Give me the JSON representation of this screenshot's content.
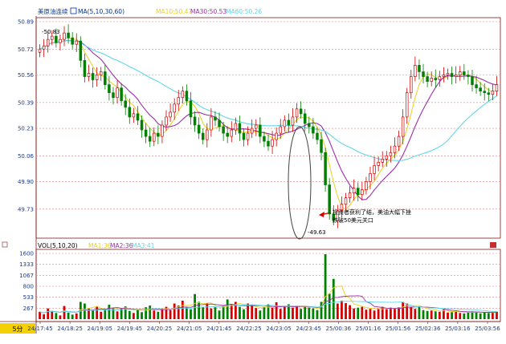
{
  "header": {
    "instrument": "美原油连续",
    "indicator": "MA(5,10,30,60)",
    "ma10_label": "MA10:50.47",
    "ma30_label": "MA30:50.53",
    "ma60_label": "MA60:50.26"
  },
  "volume_header": {
    "indicator": "VOL(5,10,20)",
    "ma1_label": "MA1:36",
    "ma2_label": "MA2:36",
    "ma3_label": "MA3:41"
  },
  "period_badge": "5分",
  "annotation": {
    "line1": "投资者获利了结，美油大幅下挫",
    "line2": "跌破50美元关口",
    "low_label": "-49.63",
    "high_label": "-50.83"
  },
  "colors": {
    "up": "#d40000",
    "down": "#008000",
    "ma5": "#e8d020",
    "ma10": "#9b2fa8",
    "ma30": "#60d8e8",
    "grid": "#e08080",
    "axis_text": "#1a3a8a"
  },
  "chart_data": [
    {
      "type": "candlestick",
      "title": "美原油连续",
      "yticks": [
        "50.89",
        "50.72",
        "50.56",
        "50.39",
        "50.23",
        "50.06",
        "49.90",
        "49.73"
      ],
      "ylim": [
        49.6,
        50.89
      ],
      "xticks": [
        "24/17:45",
        "24/18:25",
        "24/19:05",
        "24/19:45",
        "24/20:25",
        "24/21:05",
        "24/21:45",
        "24/22:25",
        "24/23:05",
        "24/23:45",
        "25/00:36",
        "25/01:16",
        "25/01:56",
        "25/02:36",
        "25/03:16",
        "25/03:56"
      ],
      "close": [
        50.72,
        50.74,
        50.78,
        50.8,
        50.76,
        50.78,
        50.82,
        50.79,
        50.75,
        50.77,
        50.65,
        50.55,
        50.57,
        50.53,
        50.56,
        50.58,
        50.5,
        50.45,
        50.42,
        50.48,
        50.4,
        50.36,
        50.3,
        50.32,
        50.28,
        50.22,
        50.18,
        50.15,
        50.2,
        50.18,
        50.25,
        50.3,
        50.33,
        50.38,
        50.42,
        50.46,
        50.4,
        50.3,
        50.25,
        50.2,
        50.16,
        50.22,
        50.3,
        50.28,
        50.24,
        50.2,
        50.18,
        50.22,
        50.26,
        50.2,
        50.16,
        50.2,
        50.23,
        50.25,
        50.18,
        50.15,
        50.12,
        50.16,
        50.2,
        50.24,
        50.28,
        50.25,
        50.3,
        50.35,
        50.32,
        50.26,
        50.24,
        50.2,
        50.16,
        50.08,
        49.88,
        49.7,
        49.66,
        49.72,
        49.76,
        49.8,
        49.83,
        49.86,
        49.82,
        49.85,
        49.9,
        49.95,
        50.0,
        50.02,
        50.04,
        50.06,
        50.08,
        50.12,
        50.18,
        50.3,
        50.45,
        50.55,
        50.62,
        50.58,
        50.55,
        50.52,
        50.54,
        50.53,
        50.55,
        50.56,
        50.57,
        50.55,
        50.56,
        50.58,
        50.56,
        50.55,
        50.5,
        50.48,
        50.46,
        50.45,
        50.44,
        50.46,
        50.5
      ]
    },
    {
      "type": "bar",
      "title": "VOL(5,10,20)",
      "yticks": [
        "1600",
        "1333",
        "1067",
        "800",
        "533",
        "267"
      ],
      "ylim": [
        0,
        1600
      ],
      "series": [
        {
          "name": "VOL",
          "values": [
            180,
            120,
            260,
            200,
            150,
            90,
            320,
            160,
            110,
            140,
            420,
            380,
            260,
            210,
            300,
            180,
            240,
            350,
            280,
            190,
            260,
            310,
            200,
            150,
            230,
            170,
            290,
            330,
            210,
            180,
            260,
            300,
            220,
            380,
            330,
            450,
            290,
            240,
            610,
            420,
            300,
            380,
            260,
            290,
            210,
            330,
            480,
            360,
            420,
            300,
            240,
            380,
            330,
            270,
            210,
            290,
            360,
            280,
            410,
            250,
            300,
            360,
            280,
            330,
            250,
            300,
            280,
            260,
            220,
            420,
            1580,
            620,
            980,
            380,
            450,
            390,
            340,
            260,
            280,
            300,
            230,
            250,
            210,
            260,
            300,
            240,
            280,
            250,
            290,
            420,
            380,
            300,
            250,
            310,
            220,
            200,
            210,
            190,
            180,
            230,
            160,
            170,
            200,
            150,
            140,
            160,
            190,
            180,
            140,
            170,
            150,
            160,
            180
          ]
        }
      ]
    }
  ]
}
